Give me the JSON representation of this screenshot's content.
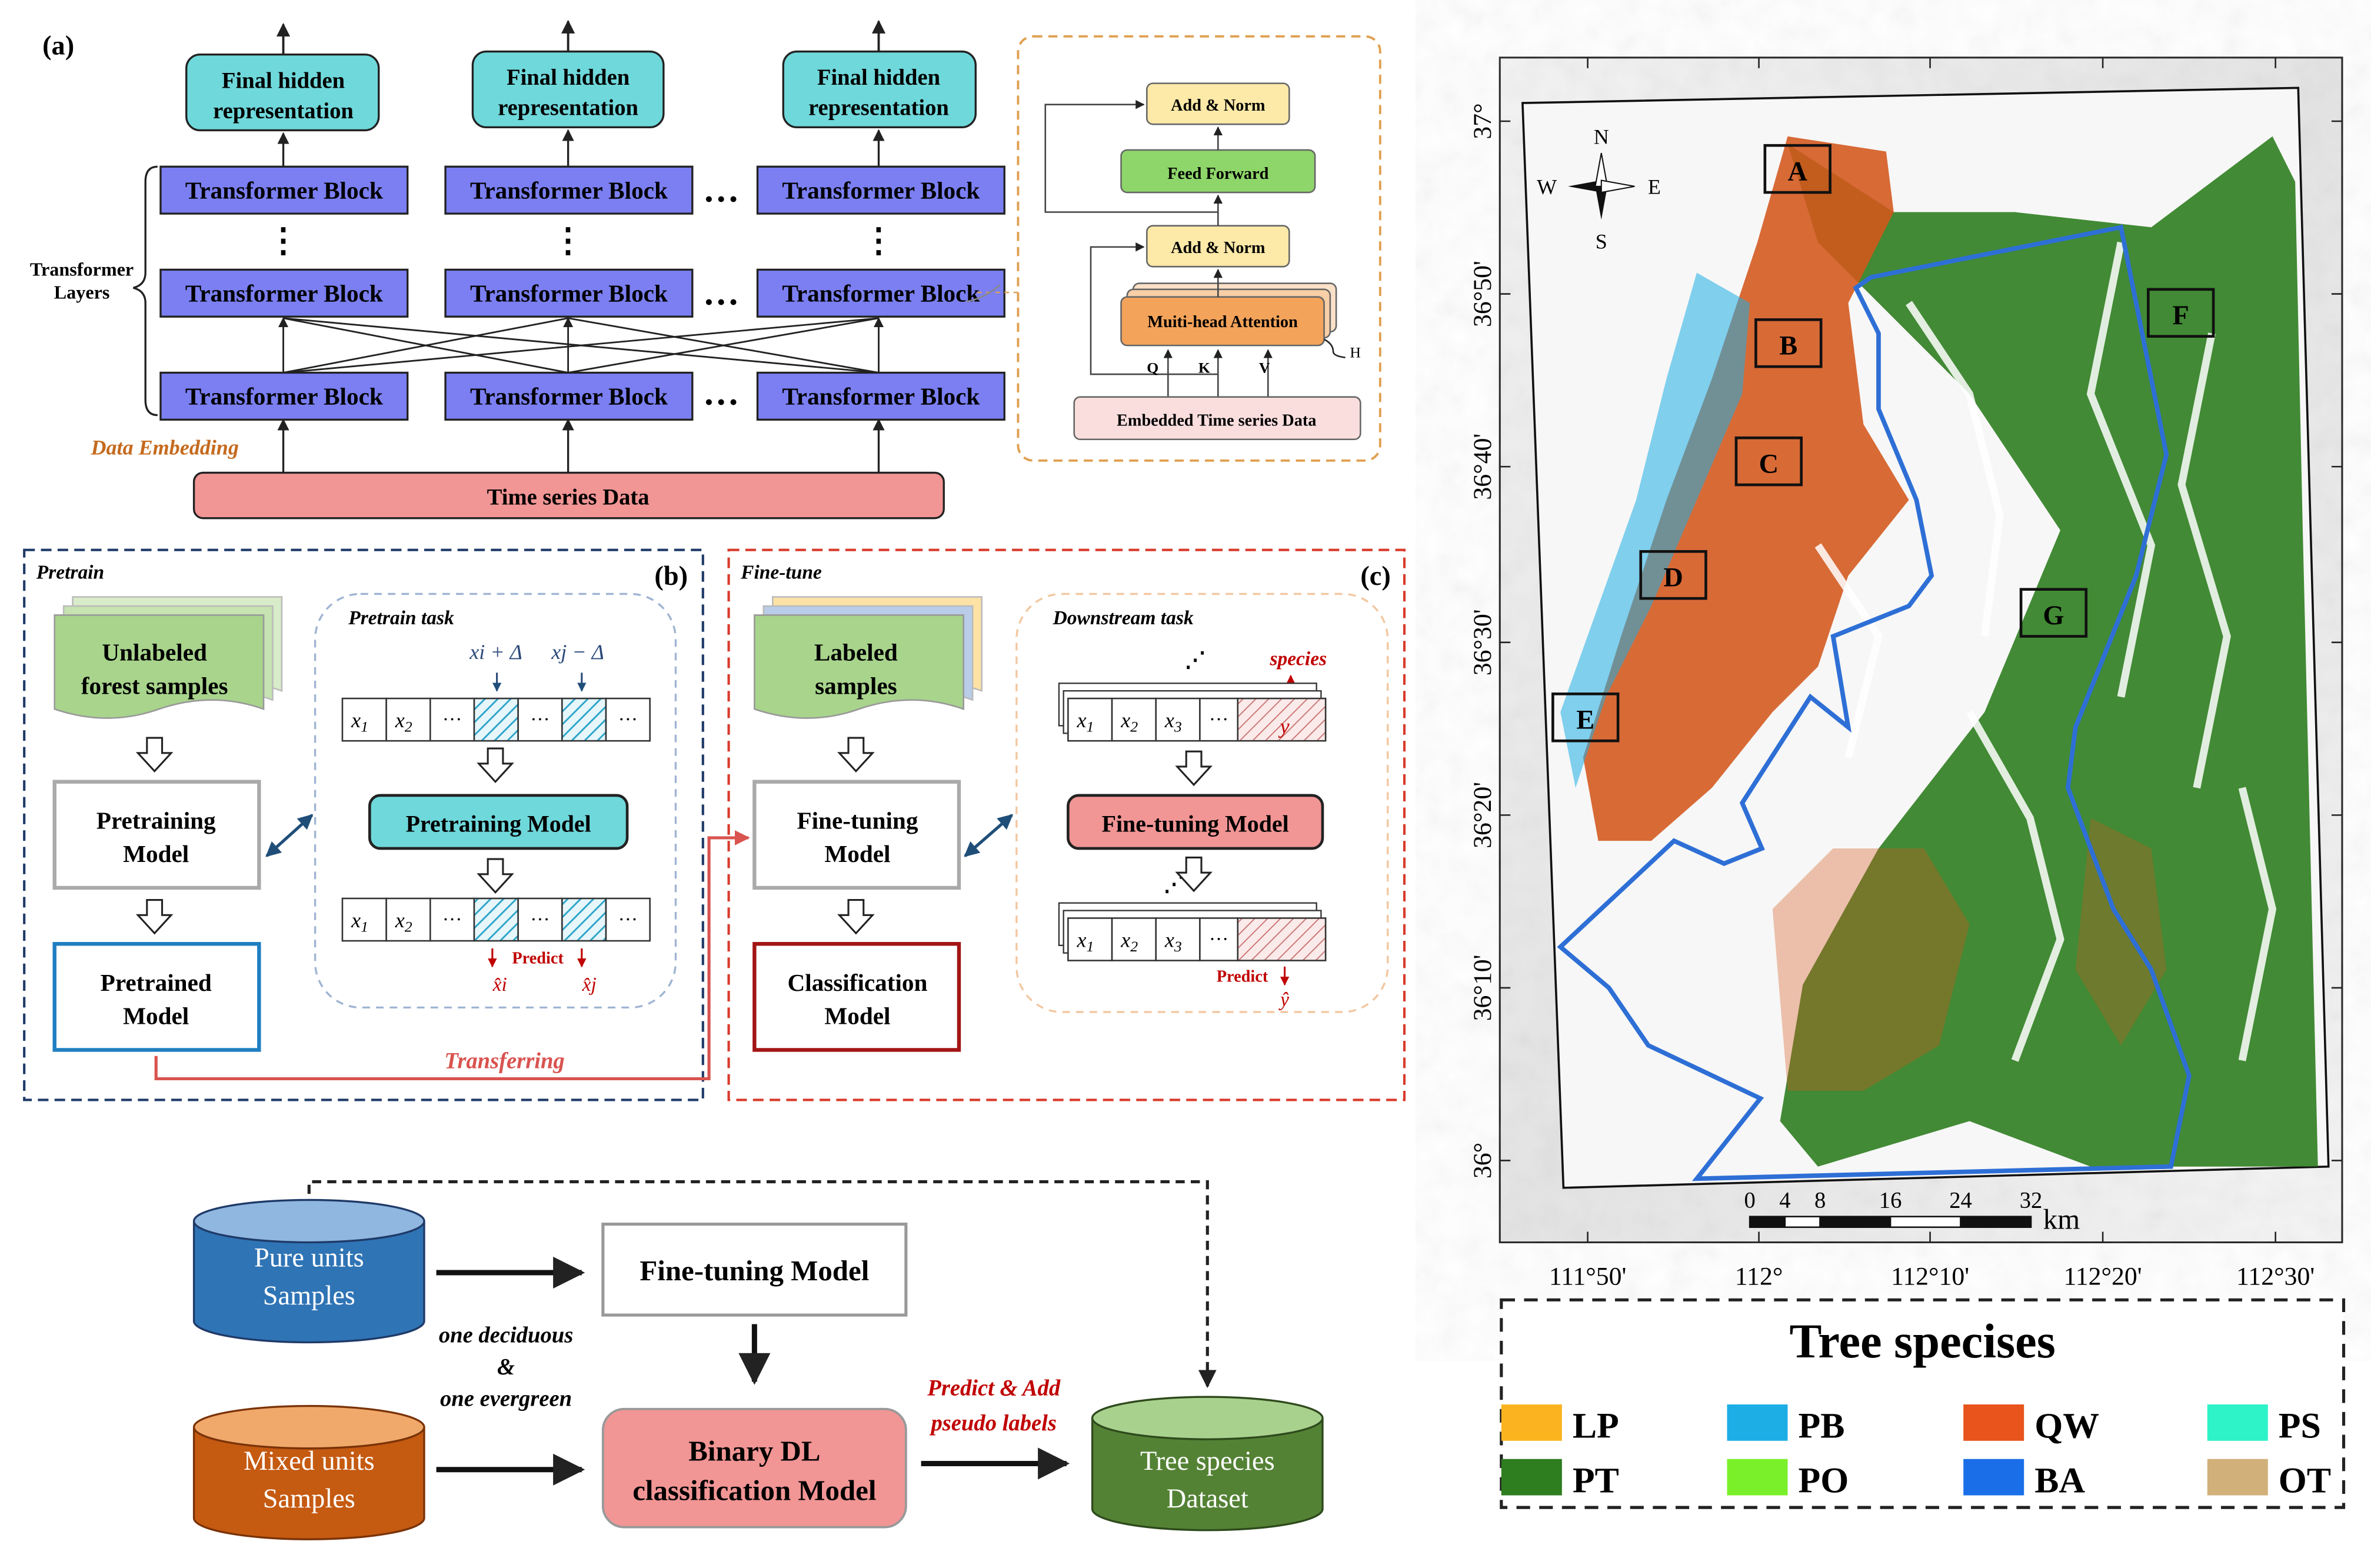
{
  "colors": {
    "block_fill": "#7b7ff2",
    "hidden_fill": "#6fd8db",
    "data_fill": "#f29595",
    "pretrain_border": "#1f3a68",
    "finetune_border": "#d93a2b",
    "transfer_color": "#d9534f",
    "green_card": "#a8d48c",
    "pure_cyl": "#2f74b5",
    "mixed_cyl": "#c55a11",
    "dataset_cyl": "#548235",
    "boundary_blue": "#2e6fd6",
    "map_green": "#2e7d1f",
    "map_orange": "#d4561b"
  },
  "panel_a": {
    "label": "(a)",
    "hidden_label": "Final hidden representation",
    "block_label": "Transformer Block",
    "layers_label": "Transformer Layers",
    "embedding_label": "Data Embedding",
    "time_series_label": "Time series Data",
    "ellipsis": "…",
    "vdots": "⋮",
    "detail": {
      "add_norm": "Add & Norm",
      "feed_forward": "Feed Forward",
      "attention": "Muiti-head Attention",
      "h": "H",
      "q": "Q",
      "k": "K",
      "v": "V",
      "embedded": "Embedded Time series Data"
    }
  },
  "panel_b": {
    "title": "Pretrain",
    "label": "(b)",
    "unlabeled": "Unlabeled forest samples",
    "pretraining_model_box": "Pretraining Model",
    "pretrained_model": "Pretrained Model",
    "task_title": "Pretrain task",
    "xi_delta": "xi + Δ",
    "xj_delta": "xj − Δ",
    "sequence": [
      "x1",
      "x2",
      "···",
      "",
      "···",
      "",
      "···"
    ],
    "pretraining_model": "Pretraining Model",
    "predict": "Predict",
    "xi_hat": "x̂i",
    "xj_hat": "x̂j",
    "transferring": "Transferring"
  },
  "panel_c": {
    "title": "Fine-tune",
    "label": "(c)",
    "labeled": "Labeled samples",
    "finetuning_model_box": "Fine-tuning Model",
    "classification_model": "Classification Model",
    "task_title": "Downstream task",
    "species": "species",
    "y": "y",
    "sequence": [
      "x1",
      "x2",
      "x3",
      "···"
    ],
    "finetuning_model": "Fine-tuning Model",
    "predict": "Predict",
    "y_hat": "ŷ"
  },
  "bottom_flow": {
    "pure": "Pure units Samples",
    "mixed": "Mixed units Samples",
    "finetuning_model": "Fine-tuning Model",
    "binary_model": "Binary DL classification Model",
    "dataset": "Tree species Dataset",
    "note1": "one deciduous",
    "note2": "&",
    "note3": "one evergreen",
    "predict_add": "Predict & Add",
    "pseudo_labels": "pseudo labels"
  },
  "map": {
    "lat_labels": [
      "37°",
      "36°50'",
      "36°40'",
      "36°30'",
      "36°20'",
      "36°10'",
      "36°"
    ],
    "lon_labels": [
      "111°50'",
      "112°",
      "112°10'",
      "112°20'",
      "112°30'"
    ],
    "sites": [
      "A",
      "B",
      "C",
      "D",
      "E",
      "F",
      "G"
    ],
    "compass": {
      "n": "N",
      "s": "S",
      "e": "E",
      "w": "W"
    },
    "scale_ticks": [
      "0",
      "4",
      "8",
      "16",
      "24",
      "32"
    ],
    "scale_unit": "km"
  },
  "legend": {
    "title": "Tree specises",
    "items": [
      {
        "label": "LP",
        "color": "#fbb420"
      },
      {
        "label": "PB",
        "color": "#1eaee6"
      },
      {
        "label": "QW",
        "color": "#e8541c"
      },
      {
        "label": "PS",
        "color": "#2ef2c8"
      },
      {
        "label": "PT",
        "color": "#2e7d1f"
      },
      {
        "label": "PO",
        "color": "#7af02a"
      },
      {
        "label": "BA",
        "color": "#1a6fe8"
      },
      {
        "label": "OT",
        "color": "#d2b07a"
      }
    ]
  }
}
